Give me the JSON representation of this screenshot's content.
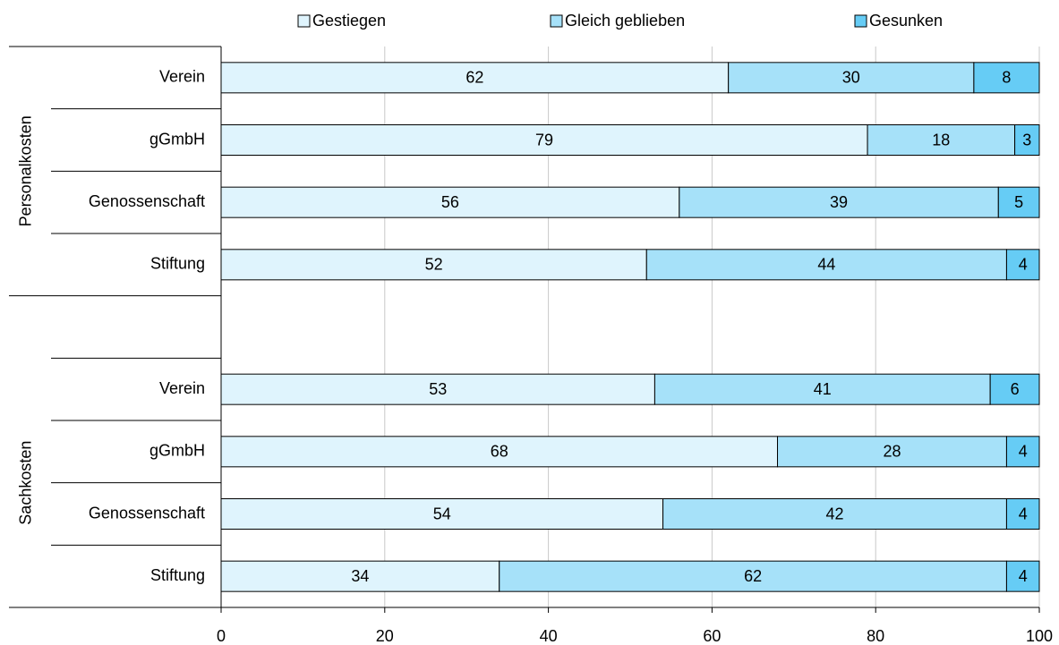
{
  "chart_data": {
    "type": "stacked-barh",
    "categories": [
      "Verein",
      "gGmbH",
      "Genossenschaft",
      "Stiftung",
      null,
      "Verein",
      "gGmbH",
      "Genossenschaft",
      "Stiftung"
    ],
    "groups": [
      "Personalkosten",
      "Sachkosten"
    ],
    "series": [
      {
        "name": "Gestiegen",
        "color": "#dff4fd",
        "values": [
          62,
          79,
          56,
          52,
          null,
          53,
          68,
          54,
          34
        ]
      },
      {
        "name": "Gleich geblieben",
        "color": "#a6e1f9",
        "values": [
          30,
          18,
          39,
          44,
          null,
          41,
          28,
          42,
          62
        ]
      },
      {
        "name": "Gesunken",
        "color": "#66ccf5",
        "values": [
          8,
          3,
          5,
          4,
          null,
          6,
          4,
          4,
          4
        ]
      }
    ],
    "xlim": [
      0,
      100
    ],
    "xticks": [
      0,
      20,
      40,
      60,
      80,
      100
    ],
    "grid": true,
    "legend": "top"
  }
}
